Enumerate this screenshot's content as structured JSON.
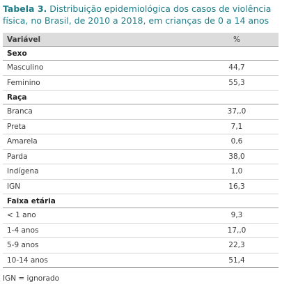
{
  "title": {
    "label": "Tabela 3.",
    "text": "Distribuição epidemiológica dos casos de violência física, no Brasil, de 2010 a 2018, em crianças de 0 a 14 anos"
  },
  "table": {
    "header": [
      "Variável",
      "%"
    ],
    "sections": [
      {
        "title": "Sexo",
        "rows": [
          [
            "Masculino",
            "44,7"
          ],
          [
            "Feminino",
            "55,3"
          ]
        ]
      },
      {
        "title": "Raça",
        "rows": [
          [
            "Branca",
            "37,,0"
          ],
          [
            "Preta",
            "7,1"
          ],
          [
            "Amarela",
            "0,6"
          ],
          [
            "Parda",
            "38,0"
          ],
          [
            "Indígena",
            "1,0"
          ],
          [
            "IGN",
            "16,3"
          ]
        ]
      },
      {
        "title": "Faixa etária",
        "rows": [
          [
            "< 1 ano",
            "9,3"
          ],
          [
            "1-4 anos",
            "17,,0"
          ],
          [
            "5-9 anos",
            "22,3"
          ],
          [
            "10-14 anos",
            "51,4"
          ]
        ]
      }
    ]
  },
  "footnote": "IGN = ignorado"
}
